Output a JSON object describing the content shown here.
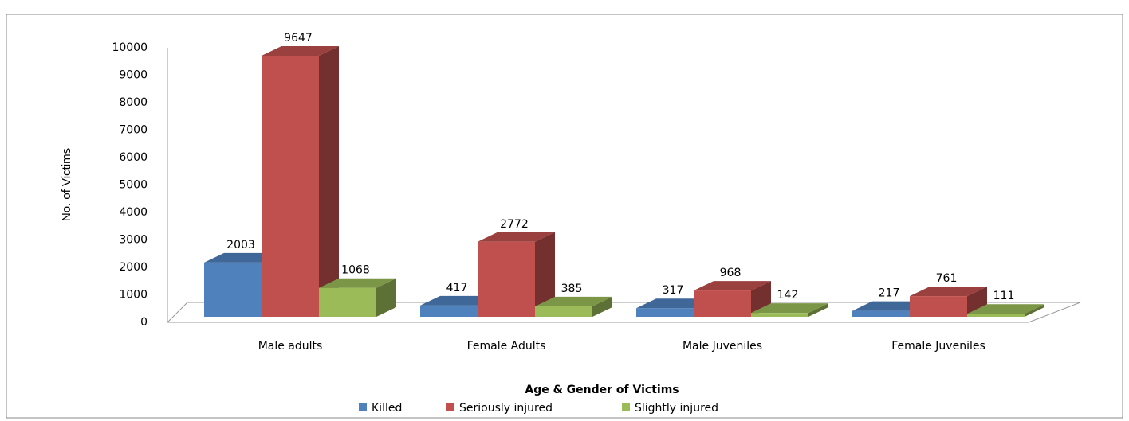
{
  "chart_data": {
    "type": "bar3d",
    "xlabel": "Age & Gender of Victims",
    "ylabel": "No. of Victims",
    "categories": [
      "Male adults",
      "Female Adults",
      "Male Juveniles",
      "Female Juveniles"
    ],
    "series": [
      {
        "name": "Killed",
        "color": "#4f81bd",
        "values": [
          2003,
          417,
          317,
          217
        ]
      },
      {
        "name": "Seriously injured",
        "color": "#c0504d",
        "values": [
          9647,
          2772,
          968,
          761
        ]
      },
      {
        "name": "Slightly injured",
        "color": "#9bbb59",
        "values": [
          1068,
          385,
          142,
          111
        ]
      }
    ],
    "ylim": [
      0,
      10000
    ],
    "yticks": [
      0,
      1000,
      2000,
      3000,
      4000,
      5000,
      6000,
      7000,
      8000,
      9000,
      10000
    ],
    "legend": "bottom"
  }
}
